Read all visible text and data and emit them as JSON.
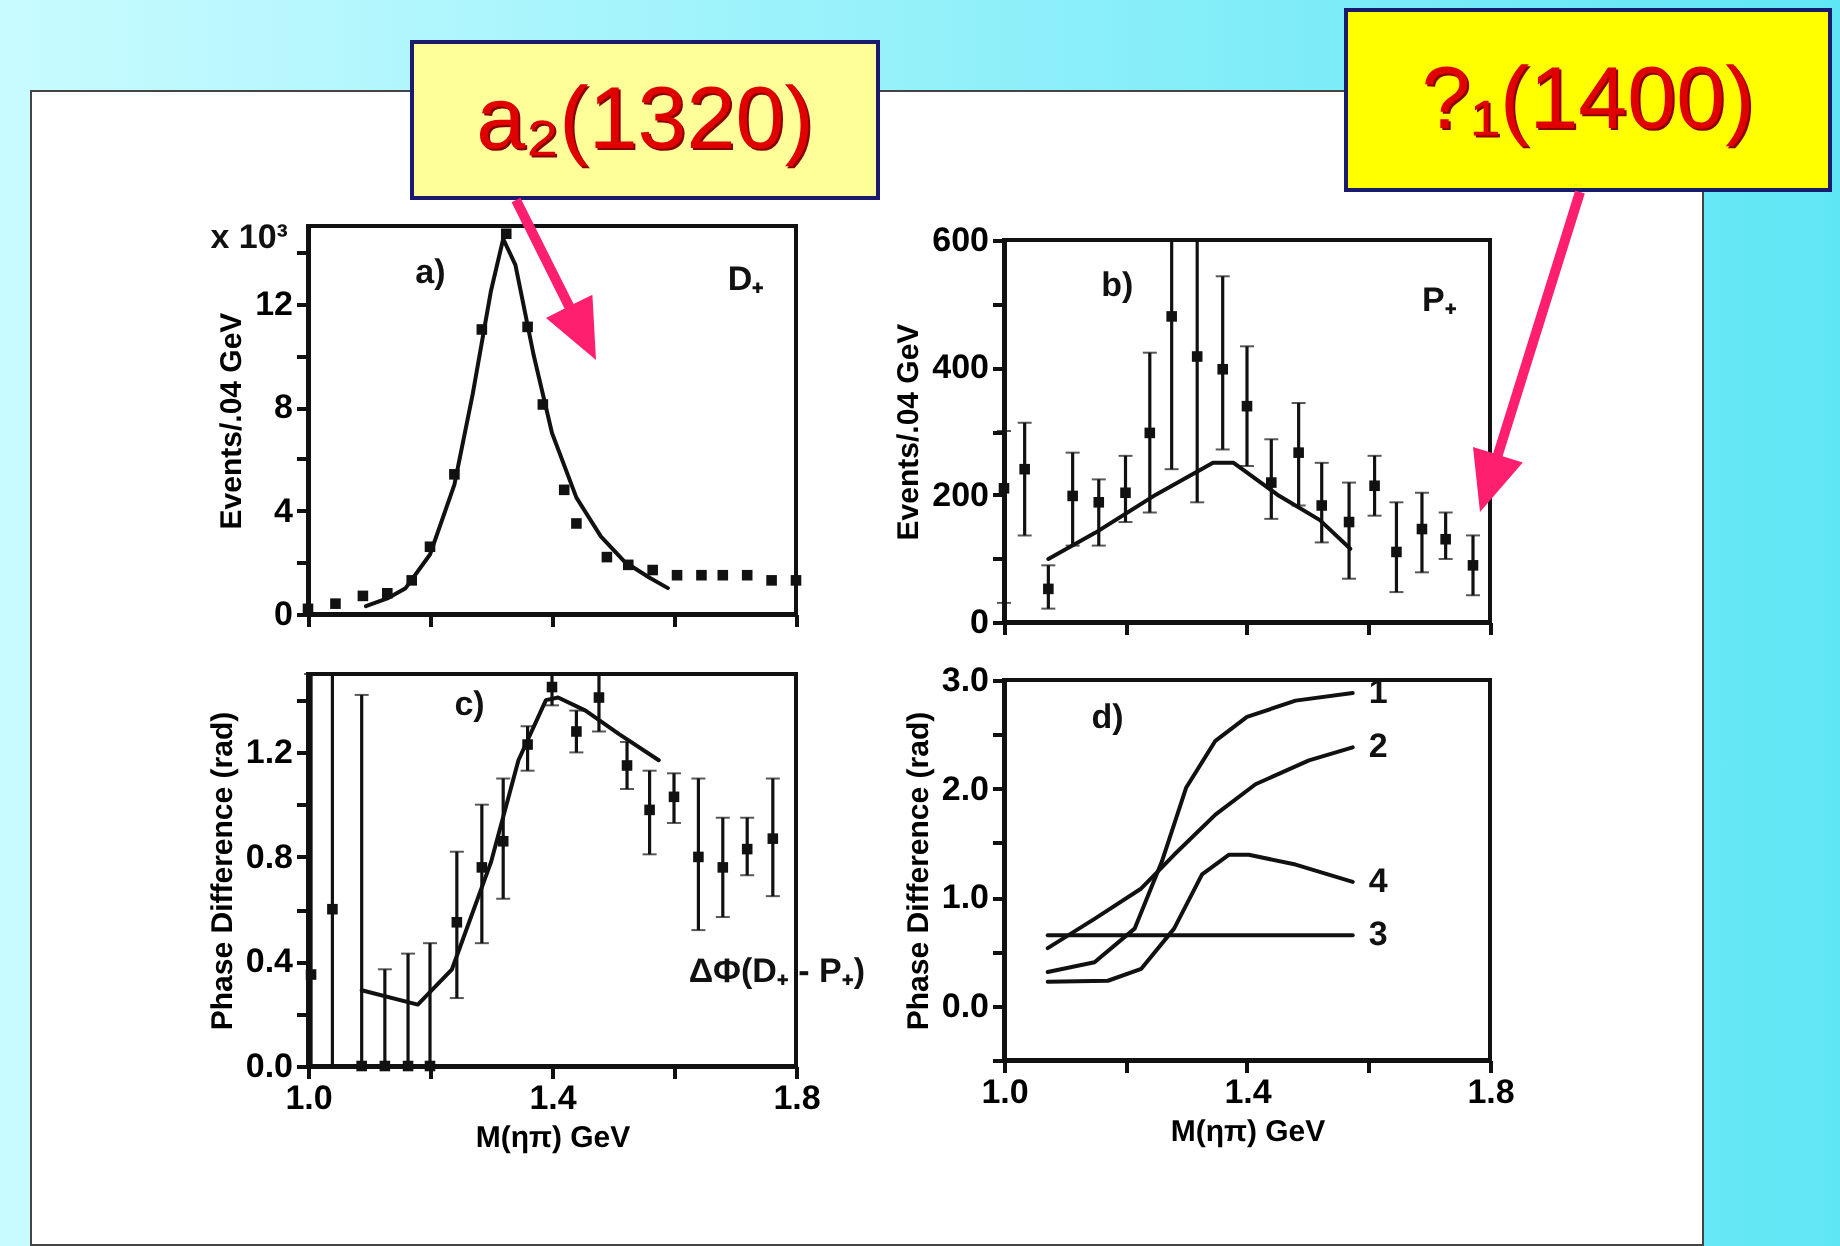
{
  "chart_data": [
    {
      "type": "scatter",
      "ylabel": "Events/.04 GeV",
      "xlim": [
        1.0,
        1.8
      ],
      "xticks": [
        1,
        1.2,
        1.4,
        1.6,
        1.8
      ],
      "ylim": [
        0,
        15
      ],
      "yticks": [
        0,
        {
          "value": 2,
          "label": null
        },
        4,
        {
          "value": 6,
          "label": null
        },
        8,
        {
          "value": 10,
          "label": null
        },
        12,
        {
          "value": 14,
          "label": null
        }
      ],
      "tick_labels": "y",
      "annotations": [
        "a)",
        "D₊",
        "x 10³",
        "a₂(1320)"
      ],
      "series": [
        {
          "marker": "square",
          "color": "#111111",
          "x": [
            1.0,
            1.045,
            1.09,
            1.13,
            1.17,
            1.2,
            1.24,
            1.285,
            1.325,
            1.36,
            1.385,
            1.42,
            1.44,
            1.49,
            1.525,
            1.565,
            1.605,
            1.645,
            1.68,
            1.72,
            1.76,
            1.8
          ],
          "values": [
            0.2,
            0.4,
            0.7,
            0.8,
            1.3,
            2.6,
            5.4,
            11.0,
            14.7,
            11.1,
            8.1,
            4.8,
            3.5,
            2.2,
            1.9,
            1.7,
            1.5,
            1.5,
            1.5,
            1.5,
            1.3,
            1.3
          ]
        },
        {
          "type": "line",
          "color": "#111111",
          "x": [
            1.095,
            1.13,
            1.16,
            1.2,
            1.24,
            1.27,
            1.3,
            1.32,
            1.34,
            1.37,
            1.4,
            1.44,
            1.48,
            1.52,
            1.56,
            1.59
          ],
          "values": [
            0.3,
            0.6,
            1.0,
            2.3,
            5.0,
            8.5,
            12.5,
            14.5,
            13.5,
            10.0,
            7.0,
            4.5,
            3.0,
            2.0,
            1.4,
            1.0
          ]
        }
      ]
    },
    {
      "type": "scatter",
      "ylabel": "Events/.04 GeV",
      "xlim": [
        1.0,
        1.8
      ],
      "xticks": [
        1,
        1.2,
        1.4,
        1.6,
        1.8
      ],
      "ylim": [
        0,
        600
      ],
      "yticks": [
        0,
        {
          "value": 100,
          "label": null
        },
        200,
        {
          "value": 300,
          "label": null
        },
        400,
        {
          "value": 500,
          "label": null
        },
        600
      ],
      "tick_labels": "y",
      "annotations": [
        "b)",
        "P₊",
        "?₁(1400)"
      ],
      "series": [
        {
          "marker": "square",
          "color": "#111111",
          "x": [
            1.0,
            1.034,
            1.073,
            1.113,
            1.156,
            1.2,
            1.24,
            1.276,
            1.318,
            1.36,
            1.4,
            1.44,
            1.485,
            1.523,
            1.568,
            1.61,
            1.646,
            1.688,
            1.727,
            1.772
          ],
          "values": [
            210,
            240,
            52,
            198,
            188,
            203,
            297,
            480,
            417,
            397,
            339,
            219,
            266,
            183,
            157,
            214,
            110,
            146,
            130,
            89
          ],
          "errors": [
            [
              30,
              300
            ],
            [
              136,
              313
            ],
            [
              21,
              89
            ],
            [
              120,
              266
            ],
            [
              120,
              224
            ],
            [
              157,
              261
            ],
            [
              172,
              423
            ],
            [
              240,
              600
            ],
            [
              188,
              600
            ],
            [
              271,
              543
            ],
            [
              245,
              433
            ],
            [
              162,
              287
            ],
            [
              183,
              344
            ],
            [
              125,
              250
            ],
            [
              68,
              219
            ],
            [
              167,
              261
            ],
            [
              47,
              188
            ],
            [
              78,
              203
            ],
            [
              99,
              172
            ],
            [
              42,
              136
            ]
          ]
        },
        {
          "type": "line",
          "color": "#111111",
          "x": [
            1.073,
            1.15,
            1.25,
            1.344,
            1.378,
            1.45,
            1.52,
            1.57
          ],
          "values": [
            99,
            140,
            200,
            250,
            250,
            200,
            160,
            115
          ]
        }
      ]
    },
    {
      "type": "scatter",
      "xlabel": "M(ηπ) GeV",
      "ylabel": "Phase Difference (rad)",
      "xlim": [
        1.0,
        1.8
      ],
      "xticks": [
        {
          "value": 1,
          "label": "1.0"
        },
        {
          "value": 1.2,
          "label": null
        },
        1.4,
        {
          "value": 1.6,
          "label": null
        },
        1.8
      ],
      "ylim": [
        0,
        1.5
      ],
      "yticks": [
        {
          "value": 0,
          "label": "0.0"
        },
        {
          "value": 0.2,
          "label": null
        },
        0.4,
        {
          "value": 0.6,
          "label": null
        },
        0.8,
        {
          "value": 1,
          "label": null
        },
        1.2,
        {
          "value": 1.4,
          "label": null
        }
      ],
      "annotations": [
        "c)",
        "ΔΦ(D₊ - P₊)"
      ],
      "series": [
        {
          "marker": "square",
          "color": "#111111",
          "x": [
            1.005,
            1.04,
            1.088,
            1.126,
            1.164,
            1.2,
            1.244,
            1.285,
            1.32,
            1.36,
            1.4,
            1.44,
            1.477,
            1.523,
            1.56,
            1.6,
            1.64,
            1.68,
            1.72,
            1.762
          ],
          "values": [
            0.35,
            0.6,
            0,
            0,
            0,
            0,
            0.55,
            0.76,
            0.86,
            1.23,
            1.45,
            1.28,
            1.41,
            1.15,
            0.98,
            1.03,
            0.8,
            0.76,
            0.83,
            0.87
          ],
          "errors": [
            [
              0,
              1.5
            ],
            [
              0,
              1.5
            ],
            [
              0,
              1.42
            ],
            [
              0,
              0.37
            ],
            [
              0,
              0.43
            ],
            [
              0,
              0.47
            ],
            [
              0.26,
              0.82
            ],
            [
              0.47,
              1.0
            ],
            [
              0.64,
              1.1
            ],
            [
              1.13,
              1.3
            ],
            [
              1.38,
              1.5
            ],
            [
              1.2,
              1.36
            ],
            [
              1.28,
              1.5
            ],
            [
              1.06,
              1.24
            ],
            [
              0.81,
              1.13
            ],
            [
              0.93,
              1.12
            ],
            [
              0.52,
              1.1
            ],
            [
              0.57,
              0.95
            ],
            [
              0.73,
              0.95
            ],
            [
              0.65,
              1.1
            ]
          ]
        },
        {
          "type": "line",
          "color": "#111111",
          "x": [
            1.088,
            1.18,
            1.236,
            1.3,
            1.345,
            1.39,
            1.41,
            1.455,
            1.51,
            1.575
          ],
          "values": [
            0.29,
            0.235,
            0.37,
            0.78,
            1.17,
            1.4,
            1.41,
            1.36,
            1.27,
            1.17
          ]
        }
      ]
    },
    {
      "type": "line",
      "xlabel": "M(ηπ) GeV",
      "ylabel": "Phase Difference (rad)",
      "xlim": [
        1.0,
        1.8
      ],
      "xticks": [
        {
          "value": 1,
          "label": "1.0"
        },
        {
          "value": 1.2,
          "label": null
        },
        1.4,
        {
          "value": 1.6,
          "label": null
        },
        1.8
      ],
      "ylim": [
        -0.5,
        3.0
      ],
      "yticks": [
        {
          "value": -0.5,
          "label": null
        },
        {
          "value": 0,
          "label": "0.0"
        },
        {
          "value": 0.5,
          "label": null
        },
        {
          "value": 1,
          "label": "1.0"
        },
        {
          "value": 1.5,
          "label": null
        },
        {
          "value": 2,
          "label": "2.0"
        },
        {
          "value": 2.5,
          "label": null
        },
        {
          "value": 3,
          "label": "3.0"
        }
      ],
      "annotations": [
        "d)"
      ],
      "series": [
        {
          "name": "1",
          "color": "#111111",
          "x": [
            1.072,
            1.149,
            1.215,
            1.26,
            1.3,
            1.348,
            1.4,
            1.48,
            1.574
          ],
          "values": [
            0.31,
            0.4,
            0.71,
            1.33,
            2.01,
            2.44,
            2.66,
            2.81,
            2.88
          ]
        },
        {
          "name": "2",
          "color": "#111111",
          "x": [
            1.072,
            1.149,
            1.226,
            1.28,
            1.348,
            1.414,
            1.502,
            1.574
          ],
          "values": [
            0.53,
            0.8,
            1.08,
            1.39,
            1.76,
            2.04,
            2.26,
            2.38
          ]
        },
        {
          "name": "3",
          "color": "#111111",
          "x": [
            1.072,
            1.574
          ],
          "values": [
            0.65,
            0.65
          ]
        },
        {
          "name": "4",
          "color": "#111111",
          "x": [
            1.072,
            1.171,
            1.226,
            1.28,
            1.326,
            1.37,
            1.403,
            1.48,
            1.574
          ],
          "values": [
            0.22,
            0.23,
            0.34,
            0.71,
            1.21,
            1.39,
            1.39,
            1.3,
            1.14
          ]
        }
      ]
    }
  ]
}
